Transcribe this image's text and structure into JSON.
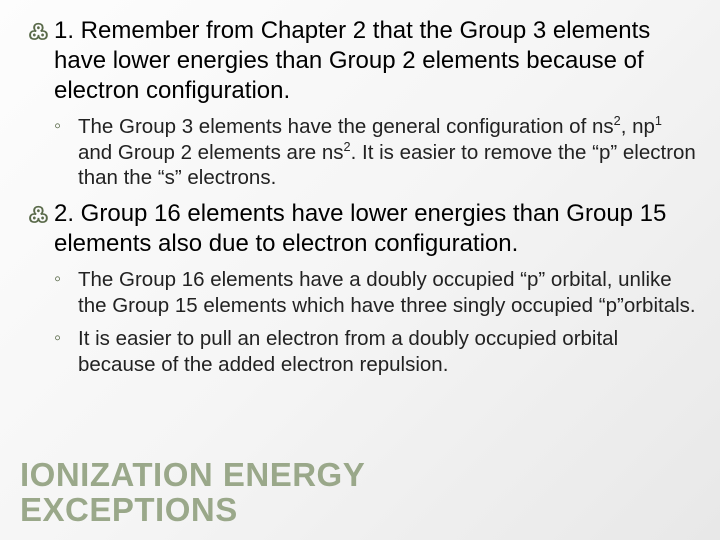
{
  "colors": {
    "bullet_color": "#5a6a4a",
    "title_color": "#9aa88a",
    "text_color": "#000000",
    "background_start": "#fdfdfd",
    "background_end": "#e8e8e8"
  },
  "fonts": {
    "main_size_pt": 18,
    "sub_size_pt": 15,
    "title_size_pt": 25
  },
  "title": {
    "line1": "IONIZATION ENERGY",
    "line2": "EXCEPTIONS"
  },
  "bullets": {
    "swirl": "ॐ",
    "sub": "◦"
  },
  "points": [
    {
      "num": "1.",
      "text": "Remember from Chapter 2 that the Group 3 elements have lower energies than Group 2 elements because of electron configuration.",
      "sub": [
        {
          "html": "The Group 3 elements have the general configuration of ns<sup>2</sup>, np<sup>1</sup> and Group 2 elements are ns<sup>2</sup>.  It is easier to remove the “p” electron than the “s” electrons."
        }
      ]
    },
    {
      "num": "2.",
      "text": "Group 16 elements have lower energies than Group 15 elements also due to electron configuration.",
      "sub": [
        {
          "html": "The Group 16 elements have a doubly occupied “p” orbital, unlike the Group 15 elements which have three singly occupied “p”orbitals."
        },
        {
          "html": "It is easier to pull an electron from a doubly occupied orbital because of the added electron repulsion."
        }
      ]
    }
  ]
}
